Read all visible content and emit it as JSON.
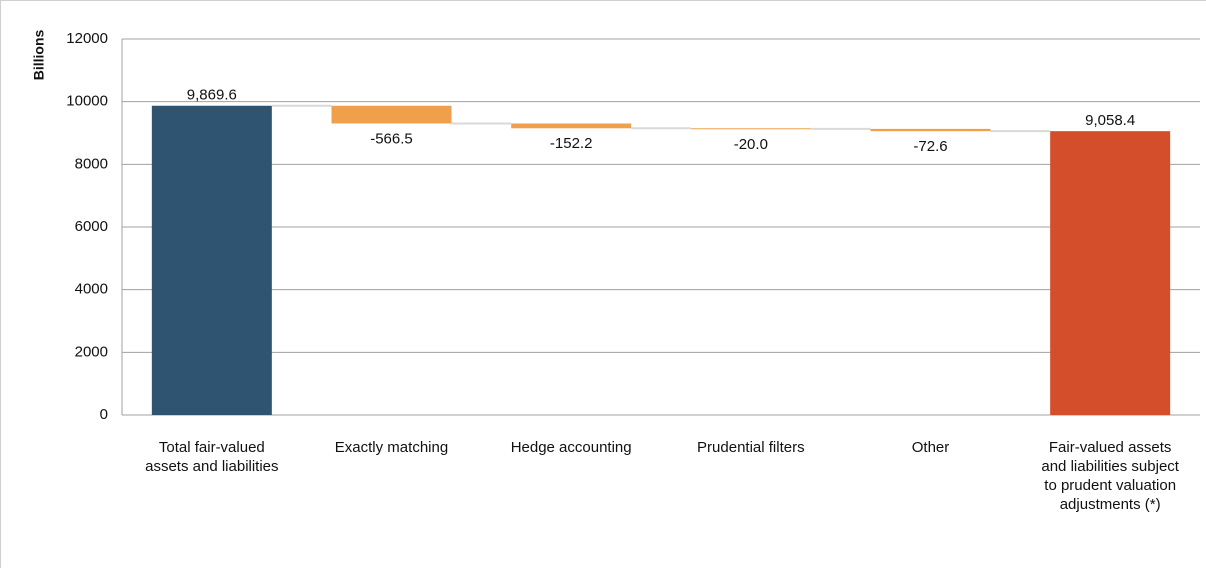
{
  "chart_data": {
    "type": "waterfall",
    "y_label": "Billions",
    "categories": [
      "Total fair-valued assets and liabilities",
      "Exactly matching",
      "Hedge accounting",
      "Prudential filters",
      "Other",
      "Fair-valued assets and liabilities subject to prudent valuation adjustments (*)"
    ],
    "values": [
      9869.6,
      -566.5,
      -152.2,
      -20.0,
      -72.6,
      9058.4
    ],
    "value_labels": [
      "9,869.6",
      "-566.5",
      "-152.2",
      "-20.0",
      "-72.6",
      "9,058.4"
    ],
    "is_total": [
      true,
      false,
      false,
      false,
      false,
      true
    ],
    "colors": [
      "#2e5471",
      "#f0a04b",
      "#f0a04b",
      "#f0a04b",
      "#f0a04b",
      "#d54e2b"
    ],
    "ylim": [
      0,
      12000
    ],
    "yticks": [
      0,
      2000,
      4000,
      6000,
      8000,
      10000,
      12000
    ],
    "grid": true
  }
}
